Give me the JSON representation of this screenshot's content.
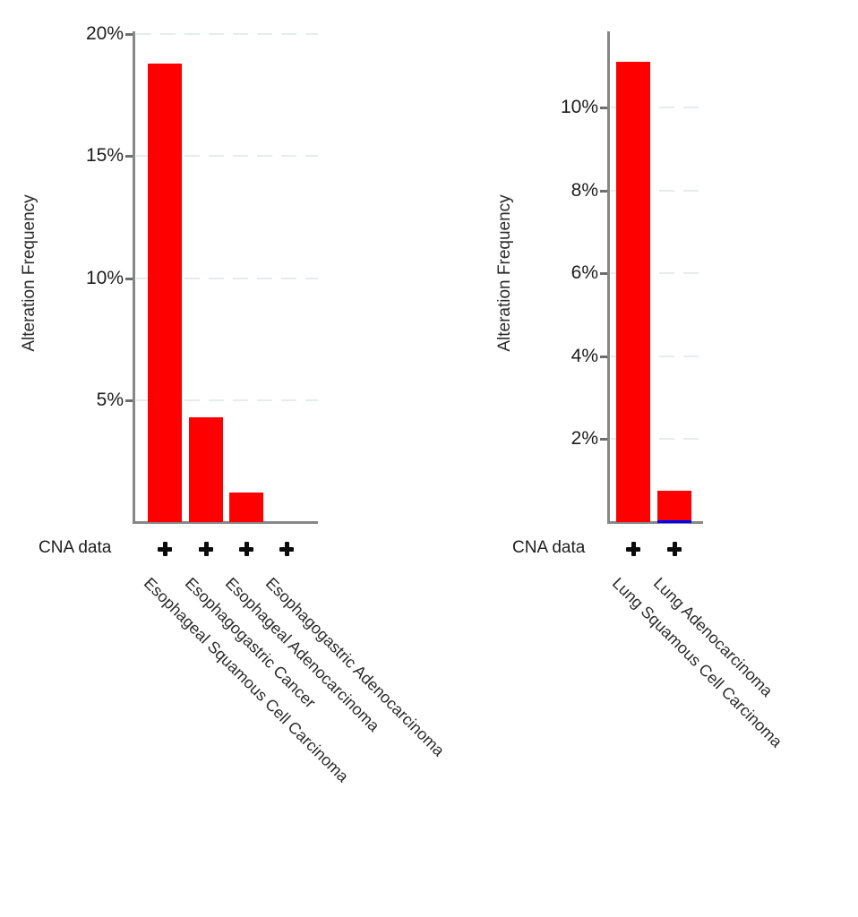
{
  "colors": {
    "bar_red": "#ff0000",
    "bar_blue": "#0000ff",
    "axis": "#878787",
    "gridline": "#e6ebee",
    "text": "#1d1d1d"
  },
  "chart_data": [
    {
      "type": "bar",
      "ylabel": "Alteration Frequency",
      "ylim": [
        0,
        20.1
      ],
      "grid": true,
      "yticks": [
        {
          "value": 5,
          "label": "5%"
        },
        {
          "value": 10,
          "label": "10%"
        },
        {
          "value": 15,
          "label": "15%"
        },
        {
          "value": 20,
          "label": "20%"
        }
      ],
      "categories": [
        "Esophageal Squamous Cell Carcinoma",
        "Esophagogastric Cancer",
        "Esophageal Adenocarcinoma",
        "Esophagogastric Adenocarcinoma"
      ],
      "series": [
        {
          "name": "red",
          "color": "#ff0000",
          "values": [
            18.8,
            4.3,
            1.2,
            0
          ]
        },
        {
          "name": "blue",
          "color": "#0000ff",
          "values": [
            0,
            0,
            0,
            0
          ]
        }
      ],
      "cna_row": {
        "label": "CNA data",
        "flags": [
          "+",
          "+",
          "+",
          "+"
        ]
      }
    },
    {
      "type": "bar",
      "ylabel": "Alteration Frequency",
      "ylim": [
        0,
        11.8
      ],
      "grid": true,
      "yticks": [
        {
          "value": 2,
          "label": "2%"
        },
        {
          "value": 4,
          "label": "4%"
        },
        {
          "value": 6,
          "label": "6%"
        },
        {
          "value": 8,
          "label": "8%"
        },
        {
          "value": 10,
          "label": "10%"
        }
      ],
      "categories": [
        "Lung Squamous Cell Carcinoma",
        "Lung Adenocarcinoma"
      ],
      "series": [
        {
          "name": "red",
          "color": "#ff0000",
          "values": [
            11.1,
            0.7
          ]
        },
        {
          "name": "blue",
          "color": "#0000ff",
          "values": [
            0,
            0.05
          ]
        }
      ],
      "cna_row": {
        "label": "CNA data",
        "flags": [
          "+",
          "+"
        ]
      }
    }
  ]
}
